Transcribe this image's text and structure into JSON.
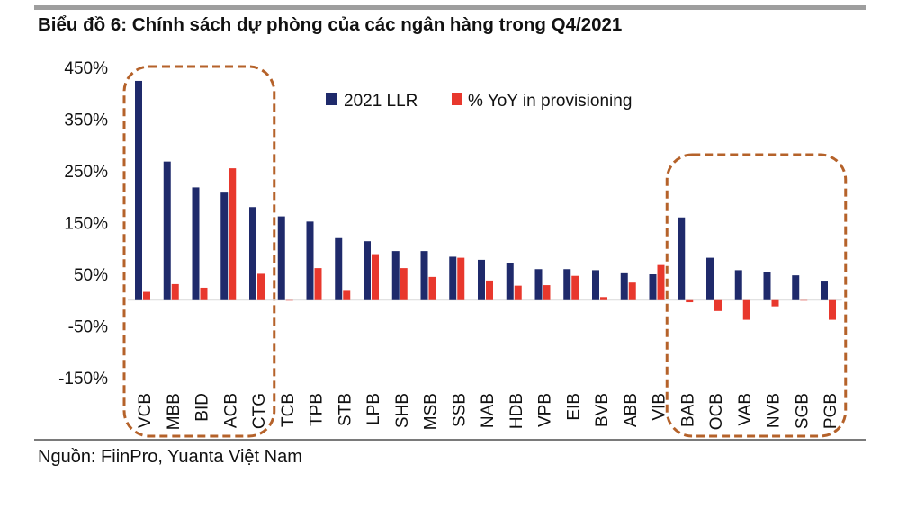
{
  "title": "Biểu đồ 6:  Chính sách dự phòng của các ngân hàng trong Q4/2021",
  "source": "Nguồn: FiinPro, Yuanta Việt Nam",
  "colors": {
    "llr": "#1f2a6b",
    "yoy": "#e8382d",
    "highlight_box": "#b5622a",
    "rule": "#9e9e9e"
  },
  "chart_data": {
    "type": "bar",
    "categories": [
      "VCB",
      "MBB",
      "BID",
      "ACB",
      "CTG",
      "TCB",
      "TPB",
      "STB",
      "LPB",
      "SHB",
      "MSB",
      "SSB",
      "NAB",
      "HDB",
      "VPB",
      "EIB",
      "BVB",
      "ABB",
      "VIB",
      "BAB",
      "OCB",
      "VAB",
      "NVB",
      "SGB",
      "PGB"
    ],
    "series": [
      {
        "name": "2021 LLR",
        "values": [
          424,
          268,
          218,
          208,
          180,
          162,
          152,
          120,
          114,
          95,
          95,
          84,
          78,
          72,
          60,
          60,
          58,
          52,
          50,
          160,
          82,
          58,
          54,
          48,
          36
        ]
      },
      {
        "name": "% YoY in provisioning",
        "values": [
          16,
          31,
          24,
          255,
          51,
          0,
          62,
          18,
          89,
          62,
          45,
          82,
          38,
          28,
          29,
          47,
          6,
          34,
          68,
          -4,
          -21,
          -38,
          -12,
          0,
          -38
        ]
      }
    ],
    "ylim": [
      -150,
      450
    ],
    "yticks": [
      -150,
      -50,
      50,
      150,
      250,
      350,
      450
    ],
    "ytick_labels": [
      "-150%",
      "-50%",
      "50%",
      "150%",
      "250%",
      "350%",
      "450%"
    ],
    "highlight_groups": [
      {
        "name": "left-group",
        "categories": [
          "VCB",
          "MBB",
          "BID",
          "ACB",
          "CTG"
        ]
      },
      {
        "name": "right-group",
        "categories": [
          "BAB",
          "OCB",
          "VAB",
          "NVB",
          "SGB",
          "PGB"
        ]
      }
    ],
    "legend_position": "top-center",
    "xlabel": "",
    "ylabel": ""
  }
}
